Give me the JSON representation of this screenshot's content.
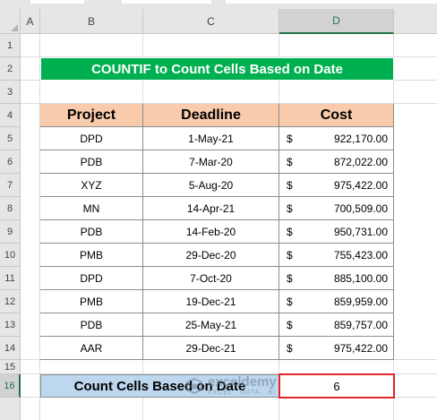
{
  "columns": [
    "A",
    "B",
    "C",
    "D"
  ],
  "rows": [
    "1",
    "2",
    "3",
    "4",
    "5",
    "6",
    "7",
    "8",
    "9",
    "10",
    "11",
    "12",
    "13",
    "14",
    "15",
    "16"
  ],
  "title": "COUNTIF to Count Cells Based on Date",
  "table": {
    "headers": [
      "Project",
      "Deadline",
      "Cost"
    ],
    "currency_symbol": "$",
    "rows": [
      {
        "project": "DPD",
        "deadline": "1-May-21",
        "cost": "922,170.00"
      },
      {
        "project": "PDB",
        "deadline": "7-Mar-20",
        "cost": "872,022.00"
      },
      {
        "project": "XYZ",
        "deadline": "5-Aug-20",
        "cost": "975,422.00"
      },
      {
        "project": "MN",
        "deadline": "14-Apr-21",
        "cost": "700,509.00"
      },
      {
        "project": "PDB",
        "deadline": "14-Feb-20",
        "cost": "950,731.00"
      },
      {
        "project": "PMB",
        "deadline": "29-Dec-20",
        "cost": "755,423.00"
      },
      {
        "project": "DPD",
        "deadline": "7-Oct-20",
        "cost": "885,100.00"
      },
      {
        "project": "PMB",
        "deadline": "19-Dec-21",
        "cost": "859,959.00"
      },
      {
        "project": "PDB",
        "deadline": "25-May-21",
        "cost": "859,757.00"
      },
      {
        "project": "AAR",
        "deadline": "29-Dec-21",
        "cost": "975,422.00"
      }
    ]
  },
  "count": {
    "label": "Count Cells Based on Date",
    "value": "6"
  },
  "watermark": {
    "name": "exceldemy",
    "tagline": "EXCEL · DATA · BI"
  },
  "colors": {
    "title_bg": "#00b050",
    "header_bg": "#f8cbad",
    "count_bg": "#bdd7ee",
    "selection": "#e0262b"
  }
}
